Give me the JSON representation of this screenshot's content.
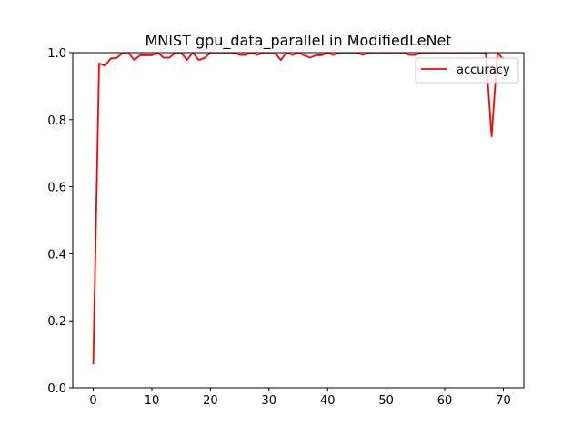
{
  "chart_data": {
    "type": "line",
    "title": "MNIST gpu_data_parallel in ModifiedLeNet",
    "xlabel": "",
    "ylabel": "",
    "xlim": [
      -3.5,
      73.5
    ],
    "ylim": [
      0.0,
      1.0
    ],
    "xticks": [
      0,
      10,
      20,
      30,
      40,
      50,
      60,
      70
    ],
    "yticks": [
      0.0,
      0.2,
      0.4,
      0.6,
      0.8,
      1.0
    ],
    "xtick_labels": [
      "0",
      "10",
      "20",
      "30",
      "40",
      "50",
      "60",
      "70"
    ],
    "ytick_labels": [
      "0.0",
      "0.2",
      "0.4",
      "0.6",
      "0.8",
      "1.0"
    ],
    "grid": false,
    "legend_position": "upper right",
    "series": [
      {
        "name": "accuracy",
        "color": "#ff0000",
        "x": [
          0,
          1,
          2,
          3,
          4,
          5,
          6,
          7,
          8,
          9,
          10,
          11,
          12,
          13,
          14,
          15,
          16,
          17,
          18,
          19,
          20,
          21,
          22,
          23,
          24,
          25,
          26,
          27,
          28,
          29,
          30,
          31,
          32,
          33,
          34,
          35,
          36,
          37,
          38,
          39,
          40,
          41,
          42,
          43,
          44,
          45,
          46,
          47,
          48,
          49,
          50,
          51,
          52,
          53,
          54,
          55,
          56,
          57,
          58,
          59,
          60,
          61,
          62,
          63,
          64,
          65,
          66,
          67,
          68,
          69,
          70
        ],
        "values": [
          0.07,
          0.968,
          0.961,
          0.983,
          0.984,
          1.0,
          1.0,
          0.978,
          0.992,
          0.992,
          0.992,
          1.0,
          0.985,
          0.985,
          1.0,
          1.0,
          0.978,
          1.0,
          0.978,
          0.984,
          1.0,
          1.0,
          1.0,
          1.0,
          1.0,
          0.993,
          0.993,
          1.0,
          0.993,
          1.0,
          1.0,
          1.0,
          0.978,
          1.0,
          0.993,
          1.0,
          0.992,
          0.985,
          0.992,
          0.992,
          1.0,
          0.993,
          1.0,
          1.0,
          1.0,
          1.0,
          0.993,
          1.0,
          1.0,
          1.0,
          1.0,
          1.0,
          1.0,
          1.0,
          0.993,
          0.993,
          1.0,
          1.0,
          1.0,
          1.0,
          1.0,
          1.0,
          1.0,
          1.0,
          1.0,
          1.0,
          1.0,
          1.0,
          0.75,
          1.0,
          0.98
        ]
      }
    ]
  }
}
